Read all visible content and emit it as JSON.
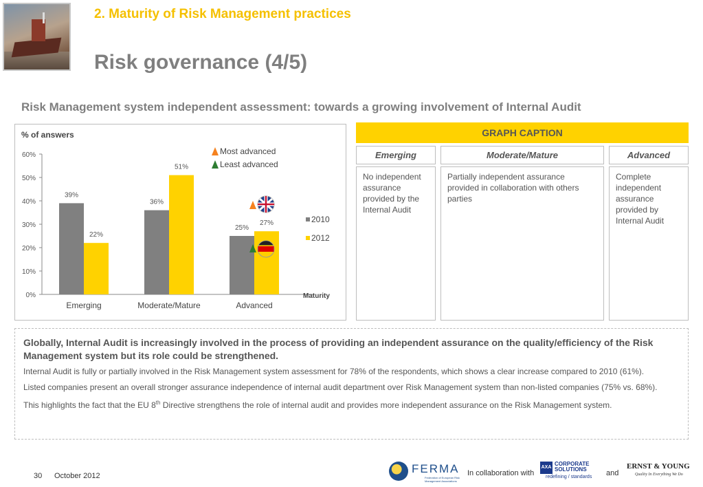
{
  "header": {
    "section_title": "2.  Maturity of Risk Management practices",
    "page_title": "Risk governance (4/5)",
    "subtitle": "Risk Management system independent assessment: towards a growing involvement of Internal Audit"
  },
  "chart_data": {
    "type": "bar",
    "ylabel": "% of answers",
    "xlabel": "Maturity",
    "categories": [
      "Emerging",
      "Moderate/Mature",
      "Advanced"
    ],
    "series": [
      {
        "name": "2010",
        "values": [
          39,
          36,
          25
        ],
        "labels": [
          "39%",
          "36%",
          "25%"
        ],
        "color": "#808080"
      },
      {
        "name": "2012",
        "values": [
          22,
          51,
          27
        ],
        "labels": [
          "22%",
          "51%",
          "27%"
        ],
        "color": "#ffd200"
      }
    ],
    "yticks": [
      "0%",
      "10%",
      "20%",
      "30%",
      "40%",
      "50%",
      "60%"
    ],
    "ylim": [
      0,
      60
    ],
    "grid": false,
    "legend_position": "right",
    "markers": {
      "most_advanced": {
        "label": "Most advanced",
        "color": "#f5821f",
        "flag": "uk-flag",
        "category": "Advanced"
      },
      "least_advanced": {
        "label": "Least advanced",
        "color": "#2e7d32",
        "flag": "germany-flag",
        "category": "Advanced"
      }
    }
  },
  "caption": {
    "title": "GRAPH CAPTION",
    "columns": [
      {
        "heading": "Emerging",
        "text": "No independent assurance provided by the Internal Audit"
      },
      {
        "heading": "Moderate/Mature",
        "text": "Partially independent assurance provided in collaboration with others parties"
      },
      {
        "heading": "Advanced",
        "text": "Complete independent assurance provided by Internal Audit"
      }
    ]
  },
  "summary": {
    "lead": "Globally, Internal Audit is increasingly involved in the process of providing an independent assurance on the quality/efficiency of the Risk Management system but its role could be strengthened.",
    "p1": "Internal Audit is fully or partially involved in the Risk Management system assessment for 78% of the respondents, which shows a clear increase compared to 2010 (61%).",
    "p2": "Listed companies present an overall stronger assurance independence of internal audit department over Risk Management system than non-listed companies (75% vs. 68%).",
    "p3_before": "This highlights the fact that the EU 8",
    "p3_sup": "th",
    "p3_after": " Directive strengthens the role of internal audit and provides more independent assurance on the Risk Management system."
  },
  "footer": {
    "page_number": "30",
    "date": "October 2012",
    "collab": "In collaboration with",
    "and": "and",
    "ferma": {
      "name": "FERMA",
      "sub": "Federation of European Risk Management Associations",
      "color": "#1f4f8b"
    },
    "axa": {
      "mark": "AXA",
      "line1": "CORPORATE",
      "line2": "SOLUTIONS",
      "line3": "redefining / standards",
      "color": "#1b3a8c"
    },
    "ey": {
      "name": "ERNST & YOUNG",
      "tagline": "Quality In Everything We Do"
    }
  }
}
